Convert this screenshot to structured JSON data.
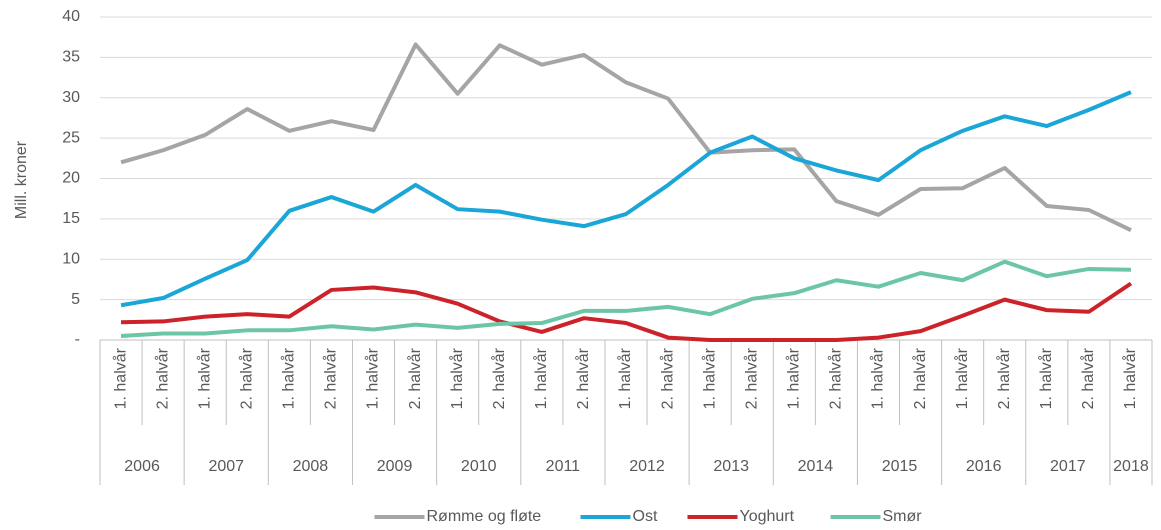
{
  "chart_data": {
    "type": "line",
    "y_label": "Mill. kroner",
    "categories": [
      "1. halvår",
      "2. halvår",
      "1. halvår",
      "2. halvår",
      "1. halvår",
      "2. halvår",
      "1. halvår",
      "2. halvår",
      "1. halvår",
      "2. halvår",
      "1. halvår",
      "2. halvår",
      "1. halvår",
      "2. halvår",
      "1. halvår",
      "2. halvår",
      "1. halvår",
      "2. halvår",
      "1. halvår",
      "2. halvår",
      "1. halvår",
      "2. halvår",
      "1. halvår",
      "2. halvår",
      "1. halvår"
    ],
    "category_groups": [
      {
        "label": "2006",
        "span": 2
      },
      {
        "label": "2007",
        "span": 2
      },
      {
        "label": "2008",
        "span": 2
      },
      {
        "label": "2009",
        "span": 2
      },
      {
        "label": "2010",
        "span": 2
      },
      {
        "label": "2011",
        "span": 2
      },
      {
        "label": "2012",
        "span": 2
      },
      {
        "label": "2013",
        "span": 2
      },
      {
        "label": "2014",
        "span": 2
      },
      {
        "label": "2015",
        "span": 2
      },
      {
        "label": "2016",
        "span": 2
      },
      {
        "label": "2017",
        "span": 2
      },
      {
        "label": "2018",
        "span": 1
      }
    ],
    "series": [
      {
        "name": "Rømme og fløte",
        "color": "#a5a5a5",
        "values": [
          22,
          23.5,
          25.4,
          28.6,
          25.9,
          27.1,
          26,
          36.6,
          30.5,
          36.5,
          34.1,
          35.3,
          31.9,
          29.9,
          23.2,
          23.5,
          23.6,
          17.2,
          15.5,
          18.7,
          18.8,
          21.3,
          16.6,
          16.1,
          13.6
        ]
      },
      {
        "name": "Ost",
        "color": "#1aa6d6",
        "values": [
          4.3,
          5.2,
          7.6,
          9.9,
          16,
          17.7,
          15.9,
          19.2,
          16.2,
          15.9,
          14.9,
          14.1,
          15.6,
          19.2,
          23.2,
          25.2,
          22.5,
          21,
          19.8,
          23.5,
          25.9,
          27.7,
          26.5,
          28.5,
          30.7
        ]
      },
      {
        "name": "Yoghurt",
        "color": "#cc2229",
        "values": [
          2.2,
          2.3,
          2.9,
          3.2,
          2.9,
          6.2,
          6.5,
          5.9,
          4.5,
          2.3,
          1.0,
          2.7,
          2.1,
          0.3,
          0,
          0,
          0,
          0,
          0.3,
          1.1,
          3,
          5,
          3.7,
          3.5,
          7
        ]
      },
      {
        "name": "Smør",
        "color": "#6cc6a5",
        "values": [
          0.5,
          0.8,
          0.8,
          1.2,
          1.2,
          1.7,
          1.3,
          1.9,
          1.5,
          2.0,
          2.1,
          3.6,
          3.6,
          4.1,
          3.2,
          5.1,
          5.8,
          7.4,
          6.6,
          8.3,
          7.4,
          9.7,
          7.9,
          8.8,
          8.7
        ]
      }
    ],
    "ylim": [
      0,
      40
    ],
    "yticks": [
      {
        "value": 0,
        "label": "-"
      },
      5,
      10,
      15,
      20,
      25,
      30,
      35,
      40
    ],
    "grid": true,
    "legend": "bottom"
  }
}
